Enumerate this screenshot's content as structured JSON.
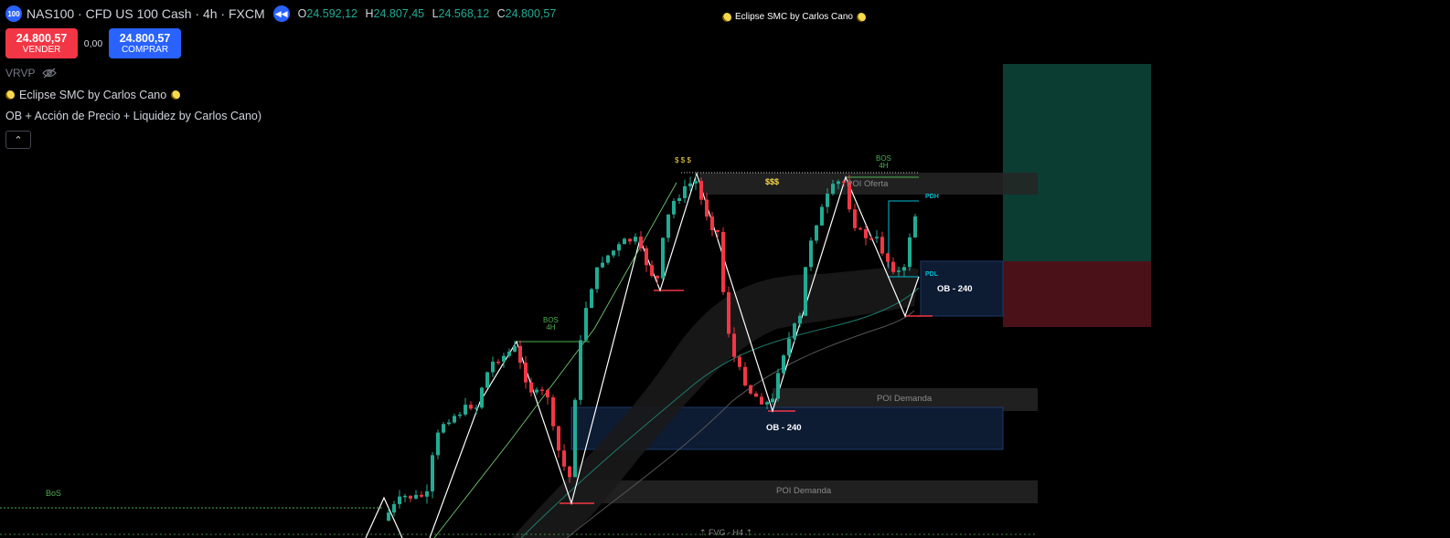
{
  "header": {
    "symbol_badge": "100",
    "title": "NAS100 · CFD US 100 Cash · 4h · FXCM",
    "ohlc": [
      {
        "key": "O",
        "value": "24.592,12"
      },
      {
        "key": "H",
        "value": "24.807,45"
      },
      {
        "key": "L",
        "value": "24.568,12"
      },
      {
        "key": "C",
        "value": "24.800,57"
      }
    ]
  },
  "trade": {
    "sell_price": "24.800,57",
    "sell_label": "VENDER",
    "spread": "0,00",
    "buy_price": "24.800,57",
    "buy_label": "COMPRAR"
  },
  "indicators": {
    "vrvp": "VRVP",
    "smc_name": "Eclipse SMC by Carlos Cano",
    "ob_name": "OB + Acción de Precio + Liquidez by Carlos Cano)"
  },
  "chart_title": "Eclipse SMC by Carlos Cano",
  "labels": {
    "bos": "BOS",
    "bos_tf": "4H",
    "bos_left": "BoS",
    "liquidity_top": "$ $ $",
    "liquidity_mid": "$$$",
    "poi_offer": "POI Oferta",
    "poi_demand": "POI Demanda",
    "ob": "OB - 240",
    "pdh": "PDH",
    "pdl": "PDL",
    "fvg": "FVG - H4"
  },
  "colors": {
    "bull": "#22ab94",
    "bear": "#f23645",
    "accent": "#2962ff",
    "bos_green": "#4caf50",
    "pdh_cyan": "#00bcd4",
    "tp_zone": "#0b3d33",
    "sl_zone": "#4a1218",
    "ob_zone": "#0d1b33",
    "poi_zone": "#262626"
  }
}
